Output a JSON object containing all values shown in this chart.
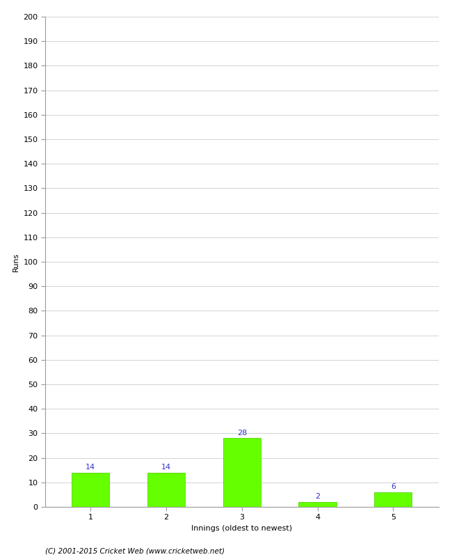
{
  "categories": [
    "1",
    "2",
    "3",
    "4",
    "5"
  ],
  "values": [
    14,
    14,
    28,
    2,
    6
  ],
  "bar_color": "#66ff00",
  "bar_edge_color": "#44cc00",
  "title": "",
  "xlabel": "Innings (oldest to newest)",
  "ylabel": "Runs",
  "ylim": [
    0,
    200
  ],
  "ytick_step": 10,
  "label_color": "#3333cc",
  "label_fontsize": 8,
  "tick_fontsize": 8,
  "ylabel_fontsize": 8,
  "xlabel_fontsize": 8,
  "footer_text": "(C) 2001-2015 Cricket Web (www.cricketweb.net)",
  "footer_fontsize": 7.5,
  "background_color": "#ffffff",
  "grid_color": "#cccccc",
  "spine_color": "#999999"
}
